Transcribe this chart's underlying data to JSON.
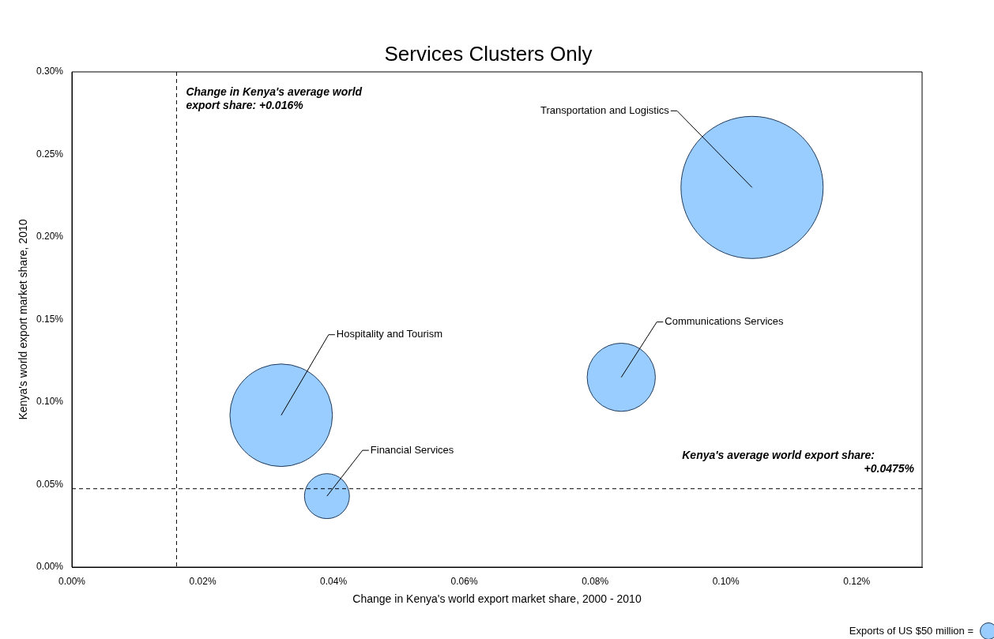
{
  "chart_data": {
    "type": "bubble",
    "title": "Services Clusters Only",
    "xlabel": "Change in Kenya's world export market share, 2000 - 2010",
    "ylabel": "Kenya's world export market share, 2010",
    "xlim": [
      0,
      0.13
    ],
    "ylim": [
      0,
      0.3
    ],
    "xticks": [
      {
        "value": 0,
        "label": "0.00%"
      },
      {
        "value": 0.02,
        "label": "0.02%"
      },
      {
        "value": 0.04,
        "label": "0.04%"
      },
      {
        "value": 0.06,
        "label": "0.06%"
      },
      {
        "value": 0.08,
        "label": "0.08%"
      },
      {
        "value": 0.1,
        "label": "0.10%"
      },
      {
        "value": 0.12,
        "label": "0.12%"
      }
    ],
    "yticks": [
      {
        "value": 0,
        "label": "0.00%"
      },
      {
        "value": 0.05,
        "label": "0.05%"
      },
      {
        "value": 0.1,
        "label": "0.10%"
      },
      {
        "value": 0.15,
        "label": "0.15%"
      },
      {
        "value": 0.2,
        "label": "0.20%"
      },
      {
        "value": 0.25,
        "label": "0.25%"
      },
      {
        "value": 0.3,
        "label": "0.30%"
      }
    ],
    "grid": false,
    "legend": false,
    "series": [
      {
        "name": "Transportation and Logistics",
        "color": "#99ccff",
        "x": [
          0.104
        ],
        "values": [
          0.23
        ],
        "sizes": [
          1
        ]
      },
      {
        "name": "Communications Services",
        "color": "#99ccff",
        "x": [
          0.084
        ],
        "values": [
          0.115
        ],
        "sizes": [
          0.23
        ]
      },
      {
        "name": "Hospitality and Tourism",
        "color": "#99ccff",
        "x": [
          0.032
        ],
        "values": [
          0.092
        ],
        "sizes": [
          0.52
        ]
      },
      {
        "name": "Financial Services",
        "color": "#99ccff",
        "x": [
          0.039
        ],
        "values": [
          0.043
        ],
        "sizes": [
          0.1
        ]
      }
    ],
    "ref_lines": [
      {
        "axis": "x",
        "value": 0.016,
        "label": "Change in Kenya's average world export share: +0.016%",
        "line_style": "dashed"
      },
      {
        "axis": "y",
        "value": 0.0475,
        "label": "Kenya's average world export share: +0.0475%",
        "line_style": "dashed"
      }
    ],
    "annotations": [
      "Exports of US $50 million ="
    ]
  }
}
